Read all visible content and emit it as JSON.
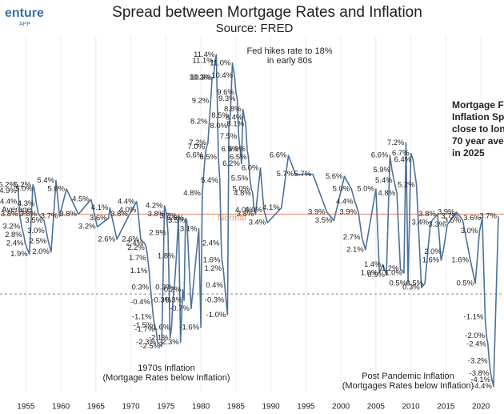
{
  "logo": {
    "name": "enture",
    "sub": "APP"
  },
  "chart_data": {
    "type": "line",
    "title": "Spread between Mortgage Rates and Inflation",
    "subtitle": "Source: FRED",
    "xlim": [
      1951.3,
      2023.3
    ],
    "ylim": [
      -4.69,
      12.48
    ],
    "xticks": [
      1955,
      1960,
      1965,
      1970,
      1975,
      1980,
      1985,
      1990,
      1995,
      2000,
      2005,
      2010,
      2015,
      2020
    ],
    "grid": true,
    "average": {
      "value": 3.8,
      "label": "Average",
      "note": "Normal",
      "color": "#e29a78"
    },
    "zero_line": {
      "value": 0,
      "dashed": true,
      "color": "#888888"
    },
    "series": [
      {
        "color": "#4d7198",
        "x": [
          1953.8,
          1953.9,
          1954.0,
          1954.1,
          1954.4,
          1954.7,
          1954.9,
          1955.5,
          1956.0,
          1956.2,
          1956.5,
          1956.8,
          1957.6,
          1957.9,
          1958.2,
          1958.6,
          1959.3,
          1959.8,
          1960.8,
          1962.5,
          1964.3,
          1965.2,
          1966.8,
          1967.0,
          1968.0,
          1969.8,
          1970.8,
          1971.0,
          1971.4,
          1972.0,
          1972.2,
          1972.4,
          1972.6,
          1972.8,
          1973.0,
          1973.2,
          1973.4,
          1973.6,
          1973.8,
          1974.4,
          1974.8,
          1975.1,
          1975.3,
          1975.6,
          1975.8,
          1976.0,
          1976.2,
          1976.5,
          1976.8,
          1977.1,
          1977.4,
          1977.6,
          1977.8,
          1978.0,
          1978.6,
          1979.7,
          1980.0,
          1980.2,
          1980.6,
          1980.8,
          1981.0,
          1981.2,
          1981.4,
          1981.6,
          1981.8,
          1982.0,
          1982.2,
          1982.5,
          1982.7,
          1982.9,
          1983.0,
          1983.2,
          1983.4,
          1983.6,
          1983.8,
          1984.0,
          1984.2,
          1984.5,
          1984.8,
          1985.0,
          1985.2,
          1985.4,
          1985.6,
          1985.8,
          1986.0,
          1986.2,
          1986.4,
          1986.6,
          1986.8,
          1987.0,
          1987.2,
          1987.4,
          1987.6,
          1987.8,
          1988.5,
          1989.0,
          1989.5,
          1991.5,
          1992.5,
          1993.5,
          1996.0,
          1998.0,
          1999.0,
          2000.5,
          2001.5,
          2002.0,
          2002.5,
          2003.0,
          2003.5,
          2005.0,
          2005.5,
          2006.0,
          2006.5,
          2007.0,
          2007.3,
          2007.6,
          2008.0,
          2008.5,
          2009.0,
          2009.3,
          2009.6,
          2010.0,
          2010.3,
          2010.8,
          2011.5,
          2012.0,
          2012.8,
          2013.8,
          2014.3,
          2014.6,
          2015.2,
          2016.5,
          2017.0,
          2017.4,
          2018.5,
          2019.2,
          2019.8,
          2020.2,
          2020.6,
          2020.8,
          2021.0,
          2021.2,
          2021.4,
          2021.6,
          2021.8,
          2022.5
        ],
        "values": [
          5.2,
          4.9,
          4.4,
          3.8,
          3.2,
          2.8,
          2.4,
          1.9,
          5.2,
          5.0,
          4.3,
          3.8,
          3.5,
          3.0,
          2.5,
          2.0,
          5.4,
          3.7,
          5.0,
          3.8,
          4.5,
          3.2,
          3.6,
          4.1,
          2.6,
          3.8,
          4.4,
          4.0,
          2.6,
          2.4,
          2.2,
          1.7,
          1.1,
          0.3,
          -0.4,
          -1.1,
          -1.5,
          -1.7,
          -2.3,
          -2.5,
          4.2,
          3.8,
          2.9,
          -2.1,
          -1.6,
          -0.3,
          0.3,
          1.8,
          3.7,
          -2.3,
          0.2,
          -0.3,
          3.6,
          3.5,
          -0.7,
          3.1,
          -1.6,
          4.8,
          6.6,
          7.0,
          7.2,
          8.2,
          9.2,
          10.3,
          10.3,
          11.1,
          11.4,
          6.5,
          5.4,
          2.4,
          1.6,
          1.2,
          0.4,
          -0.3,
          -1.0,
          8.0,
          8.5,
          11.0,
          10.4,
          9.6,
          9.3,
          7.5,
          6.9,
          6.2,
          8.8,
          8.4,
          8.1,
          6.9,
          6.5,
          5.5,
          5.0,
          4.8,
          4.0,
          3.8,
          6.0,
          4.0,
          3.4,
          4.1,
          6.6,
          5.7,
          5.7,
          3.9,
          3.5,
          5.6,
          5.0,
          4.4,
          3.9,
          2.7,
          2.1,
          5.0,
          1.0,
          1.4,
          0.9,
          6.6,
          5.9,
          5.4,
          4.8,
          1.2,
          1.0,
          7.2,
          0.5,
          6.7,
          6.4,
          5.2,
          0.3,
          0.5,
          3.4,
          3.8,
          1.6,
          2.0,
          3.3,
          3.9,
          3.7,
          3.5,
          1.6,
          0.5,
          3.0,
          3.6,
          -1.1,
          -2.0,
          -2.4,
          -3.2,
          -3.8,
          -4.1,
          -4.4,
          3.7
        ],
        "value_labels": [
          "5.2%",
          "4.9%",
          "4.4%",
          "3.8%",
          "3.2%",
          "2.8%",
          "2.4%",
          "1.9%",
          "5.2%",
          "5.0%",
          "4.3%",
          "3.8%",
          "3.5%",
          "3.0%",
          "2.5%",
          "2.0%",
          "5.4%",
          "3.7%",
          "5.0%",
          "3.8%",
          "4.5%",
          "3.2%",
          "3.6%",
          "4.1%",
          "2.6%",
          "3.8%",
          "4.4%",
          "4.0%",
          "2.6%",
          "2.4%",
          "2.2%",
          "1.7%",
          "1.1%",
          "0.3%",
          "-0.4%",
          "-1.1%",
          "-1.5%",
          "-1.7%",
          "-2.3%",
          "-2.5%",
          "4.2%",
          "3.8%",
          "2.9%",
          "-2.1%",
          "-1.6%",
          "-0.3%",
          "0.3%",
          "1.8%",
          "3.7%",
          "-2.3%",
          "0.2%",
          "-0.3%",
          "3.6%",
          "3.5%",
          "-0.7%",
          "3.1%",
          "-1.6%",
          "4.8%",
          "6.6%",
          "7.0%",
          "7.2%",
          "8.2%",
          "9.2%",
          "10.3%",
          "10.3%",
          "11.1%",
          "11.4%",
          "6.5%",
          "5.4%",
          "2.4%",
          "1.6%",
          "1.2%",
          "0.4%",
          "-0.3%",
          "-1.0%",
          "8.0%",
          "8.5%",
          "11.0%",
          "10.4%",
          "9.6%",
          "9.3%",
          "7.5%",
          "6.9%",
          "6.2%",
          "8.8%",
          "8.4%",
          "8.1%",
          "6.9%",
          "6.5%",
          "5.5%",
          "5.0%",
          "4.8%",
          "4.0%",
          "3.8%",
          "6.0%",
          "4.0%",
          "3.4%",
          "4.1%",
          "6.6%",
          "5.7%",
          "5.7%",
          "3.9%",
          "3.5%",
          "5.6%",
          "5.0%",
          "4.4%",
          "3.9%",
          "2.7%",
          "2.1%",
          "5.0%",
          "1.0%",
          "1.4%",
          "0.9%",
          "6.6%",
          "5.9%",
          "5.4%",
          "4.8%",
          "1.2%",
          "1.0%",
          "7.2%",
          "0.5%",
          "6.7%",
          "6.4%",
          "5.2%",
          "0.3%",
          "0.5%",
          "3.4%",
          "3.8%",
          "1.6%",
          "2.0%",
          "3.3%",
          "3.9%",
          "3.7%",
          "3.5%",
          "1.6%",
          "0.5%",
          "3.0%",
          "3.6%",
          "-1.1%",
          "-2.0%",
          "-2.4%",
          "-3.2%",
          "-3.8%",
          "-4.1%",
          "-4.4%",
          "3.7%"
        ]
      }
    ],
    "annotations": [
      {
        "lines": [
          "Fed hikes rate to 18%",
          "in early 80s"
        ]
      },
      {
        "lines": [
          "1970s Inflation",
          "(Mortgage Rates below Inflation)"
        ]
      },
      {
        "lines": [
          "Post Pandemic Inflation",
          "(Mortgages Rates below Inflation)"
        ]
      },
      {
        "lines": [
          "Mortgage F",
          "Inflation Sp",
          "close to lon",
          "70 year ave",
          "in 2025"
        ],
        "bold": true
      }
    ]
  }
}
